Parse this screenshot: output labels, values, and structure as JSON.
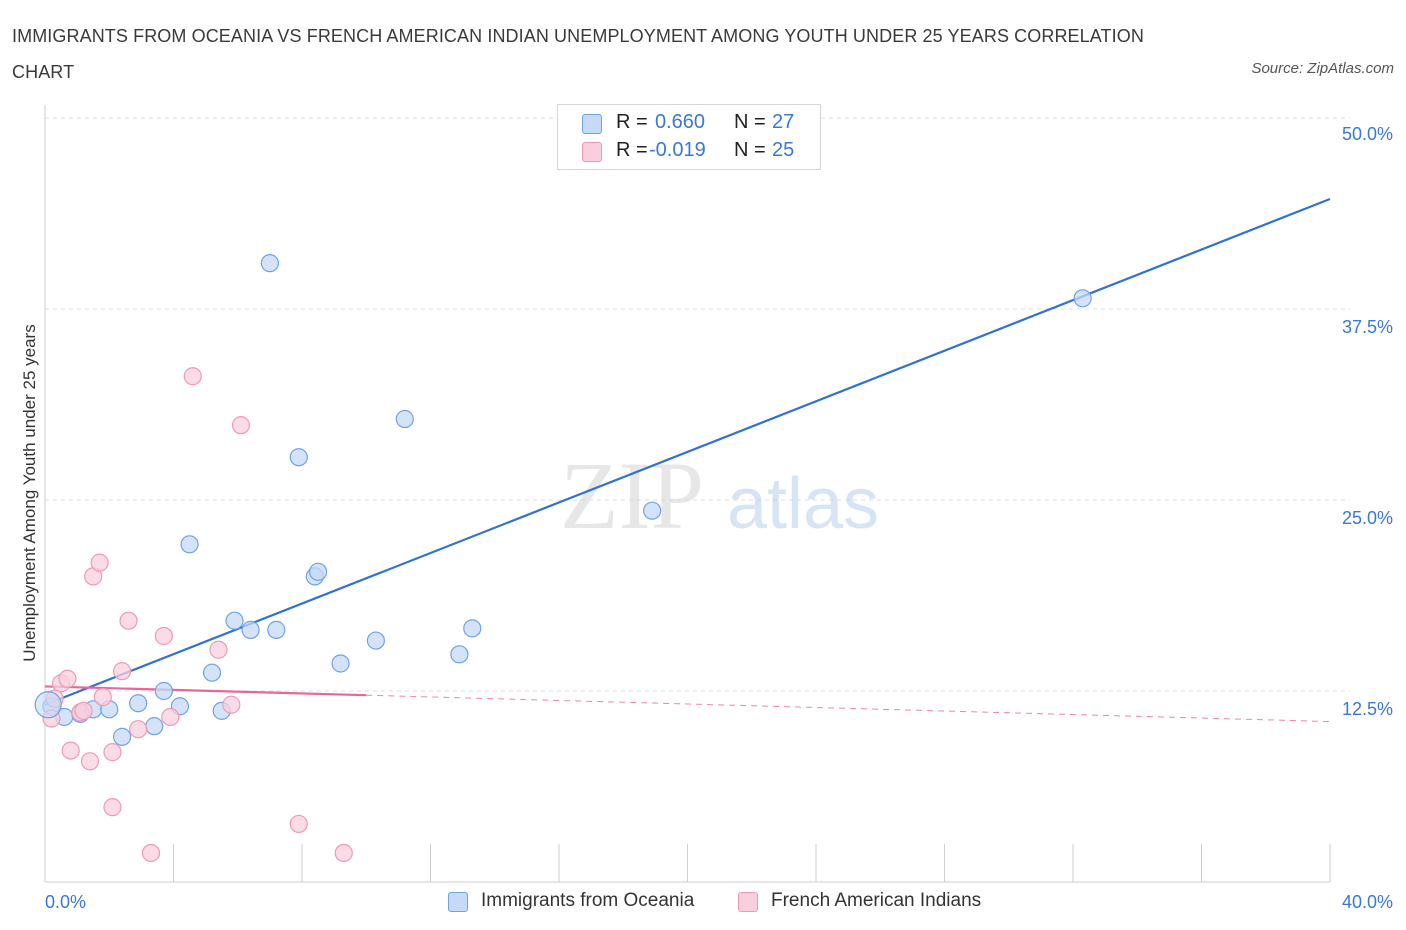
{
  "title": "IMMIGRANTS FROM OCEANIA VS FRENCH AMERICAN INDIAN UNEMPLOYMENT AMONG YOUTH UNDER 25 YEARS CORRELATION CHART",
  "source": "Source: ZipAtlas.com",
  "watermark": {
    "part1": "ZIP",
    "part2": "atlas"
  },
  "legend_stats": {
    "r_label": "R =",
    "n_label": "N =",
    "series1": {
      "r": "0.660",
      "n": "27"
    },
    "series2": {
      "r": "-0.019",
      "n": "25"
    }
  },
  "chart_data": {
    "type": "scatter",
    "title": "IMMIGRANTS FROM OCEANIA VS FRENCH AMERICAN INDIAN UNEMPLOYMENT AMONG YOUTH UNDER 25 YEARS CORRELATION CHART",
    "xlabel": "",
    "ylabel": "Unemployment Among Youth under 25 years",
    "xlim": [
      0,
      40
    ],
    "ylim": [
      0,
      50
    ],
    "x_tick_labels": [
      "0.0%",
      "40.0%"
    ],
    "y_ticks": [
      12.5,
      25.0,
      37.5,
      50.0
    ],
    "y_tick_labels": [
      "12.5%",
      "25.0%",
      "37.5%",
      "50.0%"
    ],
    "grid": true,
    "legend_position": "bottom-center",
    "series": [
      {
        "name": "Immigrants from Oceania",
        "color": "#6ea3e8",
        "fill": "#c5daf6",
        "line_color": "#2f72d0",
        "trend": {
          "x0": 0.0,
          "y0": 11.6,
          "x1": 40.0,
          "y1": 44.7,
          "dashed_from": null
        },
        "points": [
          [
            0.2,
            11.5
          ],
          [
            0.6,
            10.8
          ],
          [
            1.1,
            11.0
          ],
          [
            1.5,
            11.3
          ],
          [
            2.0,
            11.3
          ],
          [
            2.4,
            9.5
          ],
          [
            2.9,
            11.7
          ],
          [
            3.4,
            10.2
          ],
          [
            3.7,
            12.5
          ],
          [
            4.2,
            11.5
          ],
          [
            4.5,
            22.1
          ],
          [
            5.2,
            13.7
          ],
          [
            5.5,
            11.2
          ],
          [
            5.9,
            17.1
          ],
          [
            6.4,
            16.5
          ],
          [
            7.2,
            16.5
          ],
          [
            7.0,
            40.5
          ],
          [
            7.9,
            27.8
          ],
          [
            8.4,
            20.0
          ],
          [
            8.5,
            20.3
          ],
          [
            9.2,
            14.3
          ],
          [
            10.3,
            15.8
          ],
          [
            11.2,
            30.3
          ],
          [
            12.9,
            14.9
          ],
          [
            13.3,
            16.6
          ],
          [
            18.9,
            24.3
          ],
          [
            32.3,
            38.2
          ]
        ]
      },
      {
        "name": "French American Indians",
        "color": "#ee9ab7",
        "fill": "#f9cfdd",
        "line_color": "#e8679a",
        "trend": {
          "x0": 0.0,
          "y0": 12.8,
          "x1": 40.0,
          "y1": 10.5,
          "dashed_from": 10.0
        },
        "points": [
          [
            0.2,
            10.7
          ],
          [
            0.5,
            13.0
          ],
          [
            0.7,
            13.3
          ],
          [
            0.8,
            8.6
          ],
          [
            1.1,
            11.1
          ],
          [
            1.2,
            11.2
          ],
          [
            1.4,
            7.9
          ],
          [
            1.5,
            20.0
          ],
          [
            1.7,
            20.9
          ],
          [
            1.8,
            12.1
          ],
          [
            2.1,
            4.9
          ],
          [
            2.1,
            8.5
          ],
          [
            2.4,
            13.8
          ],
          [
            2.6,
            17.1
          ],
          [
            2.9,
            10.0
          ],
          [
            3.3,
            1.9
          ],
          [
            3.7,
            16.1
          ],
          [
            3.9,
            10.8
          ],
          [
            4.6,
            33.1
          ],
          [
            5.4,
            15.2
          ],
          [
            5.8,
            11.6
          ],
          [
            6.1,
            29.9
          ],
          [
            7.9,
            3.8
          ],
          [
            9.3,
            1.9
          ],
          [
            0.3,
            12.0
          ]
        ]
      }
    ]
  }
}
